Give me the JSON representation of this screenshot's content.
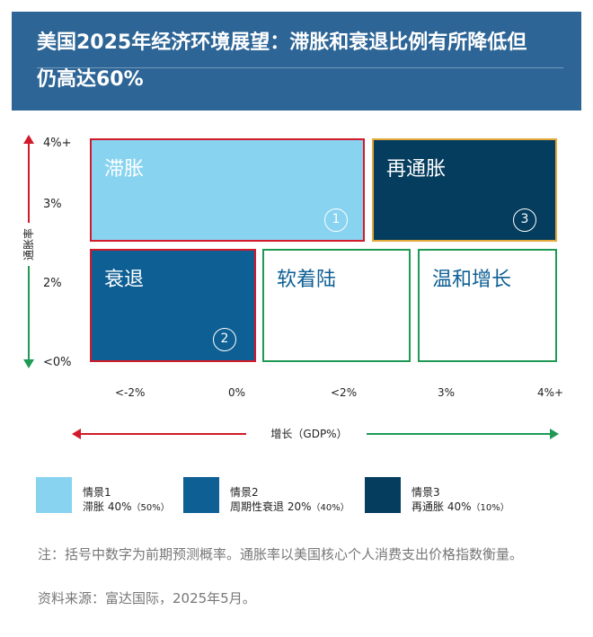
{
  "title": "美国2025年经济环境展望：滞胀和衰退比例有所降低但仍高达60%",
  "y_axis": {
    "label": "通胀率",
    "ticks": [
      "4%+",
      "3%",
      "2%",
      "<0%"
    ]
  },
  "x_axis": {
    "label": "增长（GDP%）",
    "ticks": [
      "<-2%",
      "0%",
      "<2%",
      "3%",
      "4%+"
    ]
  },
  "colors": {
    "title_band": "#2d6596",
    "light_blue": "#87d3f0",
    "mid_blue": "#0d5f94",
    "dark_blue": "#053d5e",
    "red": "#d11a2a",
    "green": "#1f9a55",
    "orange": "#e3a93b"
  },
  "quadrants": {
    "stagflation": {
      "label": "滞胀",
      "number": "1"
    },
    "reinflation": {
      "label": "再通胀",
      "number": "3"
    },
    "recession": {
      "label": "衰退",
      "number": "2"
    },
    "soft_landing": {
      "label": "软着陆"
    },
    "moderate_growth": {
      "label": "温和增长"
    }
  },
  "legend": [
    {
      "title": "情景1",
      "name": "滞胀 40%",
      "prev": "（50%）"
    },
    {
      "title": "情景2",
      "name": "周期性衰退 20%",
      "prev": "（40%）"
    },
    {
      "title": "情景3",
      "name": "再通胀 40%",
      "prev": "（10%）"
    }
  ],
  "note": "注：括号中数字为前期预测概率。通胀率以美国核心个人消费支出价格指数衡量。",
  "source": "资料来源：富达国际，2025年5月。"
}
